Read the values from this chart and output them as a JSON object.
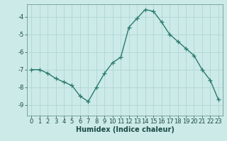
{
  "x": [
    0,
    1,
    2,
    3,
    4,
    5,
    6,
    7,
    8,
    9,
    10,
    11,
    12,
    13,
    14,
    15,
    16,
    17,
    18,
    19,
    20,
    21,
    22,
    23
  ],
  "y": [
    -7.0,
    -7.0,
    -7.2,
    -7.5,
    -7.7,
    -7.9,
    -8.5,
    -8.8,
    -8.0,
    -7.2,
    -6.6,
    -6.3,
    -4.6,
    -4.1,
    -3.6,
    -3.7,
    -4.3,
    -5.0,
    -5.4,
    -5.8,
    -6.2,
    -7.0,
    -7.6,
    -8.7
  ],
  "line_color": "#2a7a6e",
  "marker": "+",
  "markersize": 4,
  "markeredgewidth": 0.9,
  "linewidth": 1.0,
  "bg_color": "#cceae7",
  "grid_color": "#aad4d0",
  "xlabel": "Humidex (Indice chaleur)",
  "xlabel_fontsize": 7,
  "tick_fontsize": 6,
  "xlim": [
    -0.5,
    23.5
  ],
  "ylim": [
    -9.6,
    -3.3
  ],
  "yticks": [
    -9,
    -8,
    -7,
    -6,
    -5,
    -4
  ],
  "xticks": [
    0,
    1,
    2,
    3,
    4,
    5,
    6,
    7,
    8,
    9,
    10,
    11,
    12,
    13,
    14,
    15,
    16,
    17,
    18,
    19,
    20,
    21,
    22,
    23
  ],
  "spine_color": "#5a8a84",
  "text_color": "#1a4a44"
}
